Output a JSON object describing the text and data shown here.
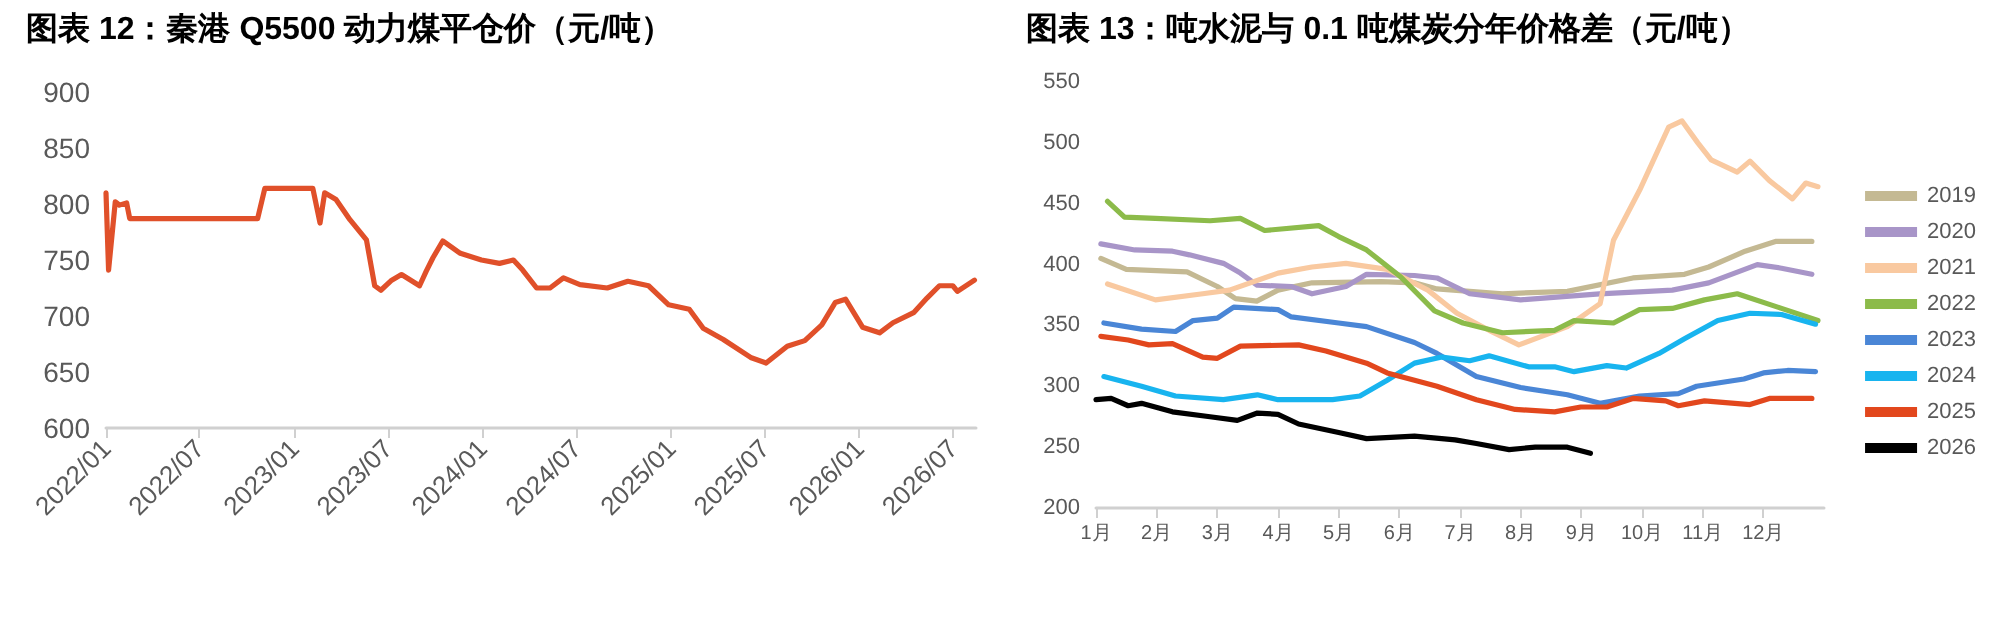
{
  "chart_data": [
    {
      "type": "line",
      "title": "图表 12：秦港 Q5500 动力煤平仓价（元/吨）",
      "x": [
        "2022-01-01",
        "2022-01-06",
        "2022-01-19",
        "2022-01-27",
        "2022-02-10",
        "2022-02-16",
        "2022-10-22",
        "2022-11-05",
        "2023-02-06",
        "2023-02-20",
        "2023-03-01",
        "2023-03-23",
        "2023-04-19",
        "2023-05-21",
        "2023-06-06",
        "2023-06-18",
        "2023-07-09",
        "2023-07-28",
        "2023-09-01",
        "2023-09-14",
        "2023-09-27",
        "2023-10-16",
        "2023-11-19",
        "2023-12-30",
        "2024-02-03",
        "2024-03-01",
        "2024-03-19",
        "2024-04-15",
        "2024-05-11",
        "2024-06-06",
        "2024-07-08",
        "2024-08-30",
        "2024-10-09",
        "2024-11-18",
        "2024-12-27",
        "2025-02-05",
        "2025-03-04",
        "2025-04-12",
        "2025-06-04",
        "2025-07-04",
        "2025-08-14",
        "2025-09-17",
        "2025-10-20",
        "2025-11-15",
        "2025-12-05",
        "2026-01-07",
        "2026-02-09",
        "2026-03-07",
        "2026-04-16",
        "2026-05-12",
        "2026-06-05",
        "2026-07-01",
        "2026-07-10",
        "2026-08-12"
      ],
      "values": [
        810,
        741,
        802,
        799,
        801,
        787,
        787,
        814,
        814,
        783,
        810,
        804,
        786,
        768,
        727,
        723,
        732,
        737,
        727,
        740,
        752,
        767,
        756,
        750,
        747,
        750,
        741,
        725,
        725,
        734,
        728,
        725,
        731,
        727,
        710,
        706,
        689,
        679,
        663,
        658,
        673,
        678,
        692,
        712,
        715,
        690,
        685,
        694,
        703,
        716,
        727,
        727,
        722,
        732
      ],
      "color": "#e0502a",
      "xlim": [
        "2022-01-01",
        "2026-08-15"
      ],
      "xticks": [
        {
          "value": "2022-01-01",
          "label": "2022/01"
        },
        {
          "value": "2022-07-01",
          "label": "2022/07"
        },
        {
          "value": "2023-01-01",
          "label": "2023/01"
        },
        {
          "value": "2023-07-01",
          "label": "2023/07"
        },
        {
          "value": "2024-01-01",
          "label": "2024/01"
        },
        {
          "value": "2024-07-01",
          "label": "2024/07"
        },
        {
          "value": "2025-01-01",
          "label": "2025/01"
        },
        {
          "value": "2025-07-01",
          "label": "2025/07"
        },
        {
          "value": "2026-01-01",
          "label": "2026/01"
        },
        {
          "value": "2026-07-01",
          "label": "2026/07"
        }
      ],
      "ylim": [
        600,
        900
      ],
      "yticks": [
        600,
        650,
        700,
        750,
        800,
        850,
        900
      ],
      "grid": false,
      "legend": false,
      "marker": "none"
    },
    {
      "type": "line",
      "title": "图表 13：吨水泥与 0.1 吨煤炭分年价格差（元/吨）",
      "series": [
        {
          "name": "2019",
          "color": "#c4b993",
          "x": [
            1.08,
            1.5,
            2.5,
            3,
            3.3,
            3.65,
            4,
            4.56,
            5.7,
            6.25,
            6.62,
            7.7,
            8.77,
            9.85,
            10.7,
            11.1,
            11.7,
            12.2,
            12.8
          ],
          "values": [
            405,
            396,
            394,
            382,
            372,
            370,
            379,
            385,
            386,
            385,
            380,
            376,
            378,
            389,
            392,
            398,
            411,
            419,
            419
          ]
        },
        {
          "name": "2020",
          "color": "#a895c8",
          "x": [
            1.08,
            1.64,
            2.26,
            2.54,
            3.1,
            3.38,
            3.66,
            4.22,
            4.56,
            5.12,
            5.46,
            6.25,
            6.62,
            7.16,
            8,
            9.3,
            10.5,
            11.1,
            11.9,
            12.3,
            12.8
          ],
          "values": [
            417,
            412,
            411,
            408,
            401,
            393,
            383,
            382,
            376,
            382,
            392,
            391,
            389,
            376,
            371,
            376,
            379,
            385,
            400,
            397,
            392
          ]
        },
        {
          "name": "2021",
          "color": "#f9c9a0",
          "x": [
            1.19,
            1.98,
            2.76,
            3.2,
            4,
            4.56,
            5.12,
            5.8,
            6.47,
            6.95,
            7.48,
            7.97,
            8.77,
            9.31,
            9.53,
            9.96,
            10.44,
            10.66,
            10.92,
            11.14,
            11.57,
            11.78,
            12.1,
            12.48,
            12.7,
            12.9
          ],
          "values": [
            384,
            371,
            376,
            379,
            393,
            398,
            401,
            396,
            379,
            360,
            346,
            334,
            349,
            368,
            420,
            461,
            513,
            518,
            500,
            486,
            476,
            485,
            469,
            454,
            467,
            464
          ]
        },
        {
          "name": "2022",
          "color": "#8cbb4a",
          "x": [
            1.19,
            1.47,
            1.98,
            2.88,
            3.38,
            3.78,
            4.67,
            5,
            5.46,
            6.02,
            6.58,
            7.05,
            7.7,
            8.56,
            8.88,
            9.53,
            9.96,
            10.5,
            11.03,
            11.57,
            12.3,
            12.9
          ],
          "values": [
            452,
            439,
            438,
            436,
            438,
            428,
            432,
            423,
            412,
            390,
            362,
            352,
            344,
            346,
            354,
            352,
            363,
            364,
            371,
            376,
            364,
            354
          ]
        },
        {
          "name": "2023",
          "color": "#4a86d6",
          "x": [
            1.13,
            1.75,
            2.31,
            2.6,
            3,
            3.27,
            4,
            4.22,
            5,
            5.46,
            6.25,
            6.62,
            7.27,
            8,
            8.77,
            9.31,
            9.96,
            10.6,
            10.9,
            11.68,
            12,
            12.4,
            12.86
          ],
          "values": [
            352,
            347,
            345,
            354,
            356,
            365,
            363,
            357,
            352,
            349,
            336,
            327,
            308,
            299,
            293,
            286,
            292,
            294,
            300,
            306,
            311,
            313,
            312
          ]
        },
        {
          "name": "2024",
          "color": "#18b4ef",
          "x": [
            1.13,
            1.75,
            2.31,
            3.1,
            3.66,
            4,
            4.9,
            5.35,
            5.8,
            6.25,
            6.7,
            7.16,
            7.48,
            8.13,
            8.56,
            8.88,
            9.42,
            9.74,
            10.28,
            10.7,
            11.25,
            11.78,
            12.3,
            12.86
          ],
          "values": [
            308,
            300,
            292,
            289,
            293,
            289,
            289,
            292,
            305,
            319,
            324,
            321,
            325,
            316,
            316,
            312,
            317,
            315,
            327,
            339,
            354,
            360,
            359,
            351
          ]
        },
        {
          "name": "2025",
          "color": "#e2471d",
          "x": [
            1.08,
            1.53,
            1.87,
            2.26,
            2.76,
            3,
            3.38,
            4.34,
            4.79,
            5.46,
            5.8,
            6.25,
            6.62,
            7.27,
            7.91,
            8.56,
            8.99,
            9.42,
            9.85,
            10.39,
            10.6,
            11.03,
            11.78,
            12.1,
            12.8
          ],
          "values": [
            341,
            338,
            334,
            335,
            324,
            323,
            333,
            334,
            329,
            319,
            311,
            305,
            300,
            289,
            281,
            279,
            283,
            283,
            290,
            288,
            284,
            288,
            285,
            290,
            290
          ]
        },
        {
          "name": "2026",
          "color": "#000000",
          "x": [
            1,
            1.25,
            1.53,
            1.75,
            2.26,
            2.88,
            3.33,
            3.66,
            4,
            4.34,
            5,
            5.46,
            6.25,
            6.92,
            7.27,
            7.81,
            8.24,
            8.77,
            9.15
          ],
          "values": [
            289,
            290,
            284,
            286,
            279,
            275,
            272,
            278,
            277,
            269,
            262,
            257,
            259,
            256,
            253,
            248,
            250,
            250,
            245
          ]
        }
      ],
      "xlim": [
        1,
        13
      ],
      "xticks": [
        {
          "value": 1,
          "label": "1月"
        },
        {
          "value": 2,
          "label": "2月"
        },
        {
          "value": 3,
          "label": "3月"
        },
        {
          "value": 4,
          "label": "4月"
        },
        {
          "value": 5,
          "label": "5月"
        },
        {
          "value": 6,
          "label": "6月"
        },
        {
          "value": 7,
          "label": "7月"
        },
        {
          "value": 8,
          "label": "8月"
        },
        {
          "value": 9,
          "label": "9月"
        },
        {
          "value": 10,
          "label": "10月"
        },
        {
          "value": 11,
          "label": "11月"
        },
        {
          "value": 12,
          "label": "12月"
        }
      ],
      "ylim": [
        200,
        550
      ],
      "yticks": [
        200,
        250,
        300,
        350,
        400,
        450,
        500,
        550
      ],
      "grid": false,
      "legend": "right",
      "marker": "none"
    }
  ]
}
